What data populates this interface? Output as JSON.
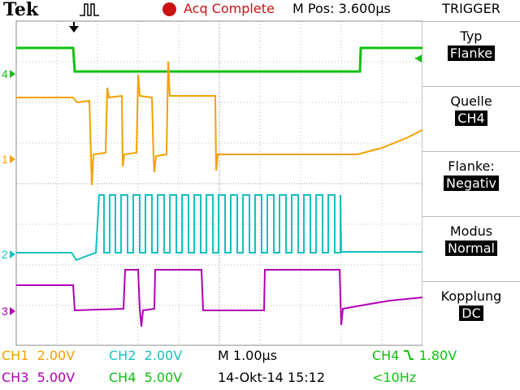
{
  "header": {
    "brand": "Tek",
    "status": "Acq Complete",
    "position": "M Pos: 3.600µs"
  },
  "trigger_menu": {
    "title": "TRIGGER",
    "items": [
      {
        "label": "Typ",
        "value": "Flanke"
      },
      {
        "label": "Quelle",
        "value": "CH4"
      },
      {
        "label": "Flanke:",
        "value": "Negativ"
      },
      {
        "label": "Modus",
        "value": "Normal"
      },
      {
        "label": "Kopplung",
        "value": "DC"
      }
    ]
  },
  "channel_markers": {
    "ch4": "4",
    "ch1": "1",
    "ch2": "2",
    "ch3": "3"
  },
  "readouts": {
    "ch1": {
      "name": "CH1",
      "scale": "2.00V"
    },
    "ch2": {
      "name": "CH2",
      "scale": "2.00V"
    },
    "ch3": {
      "name": "CH3",
      "scale": "5.00V"
    },
    "ch4": {
      "name": "CH4",
      "scale": "5.00V"
    },
    "timebase": "M 1.00µs",
    "date": "14-Okt-14 15:12",
    "trigger_source": "CH4",
    "trigger_level": "1.80V",
    "frequency": "<10Hz"
  },
  "colors": {
    "ch1": "#f5a000",
    "ch2": "#17bfc0",
    "ch3": "#b000b4",
    "ch4": "#10c010",
    "acq_dot": "#cc1111"
  },
  "icons": {
    "trigger_position": "down-arrow-icon",
    "waveform": "pulse-waveform-icon",
    "trigger_slope": "falling-edge-icon"
  }
}
